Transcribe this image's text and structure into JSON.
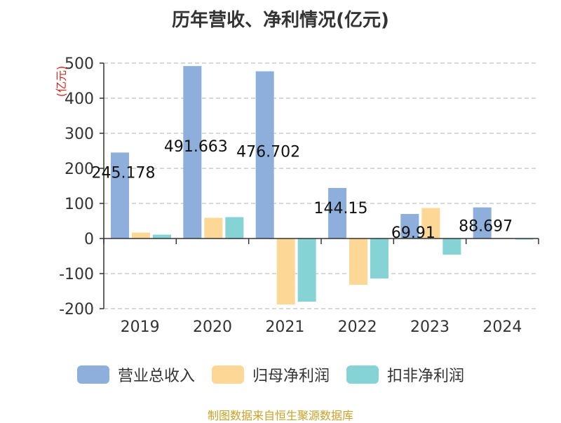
{
  "title": "历年营收、净利情况(亿元)",
  "source": "制图数据来自恒生聚源数据库",
  "colors": {
    "revenue": "#8eaedb",
    "net_profit": "#fdd795",
    "deducted_profit": "#86d3d6",
    "unit_text": "#d9261c",
    "source_text": "#c9a227"
  },
  "chart_data": {
    "type": "bar",
    "categories": [
      "2019",
      "2020",
      "2021",
      "2022",
      "2023",
      "2024"
    ],
    "ylabel": "(亿元)",
    "ylim": [
      -200,
      500
    ],
    "yticks": [
      "500",
      "400",
      "300",
      "200",
      "100",
      "0",
      "-100",
      "-200"
    ],
    "grid": true,
    "legend_position": "bottom",
    "series": [
      {
        "name": "营业总收入",
        "values": [
          245.178,
          491.663,
          476.702,
          144.15,
          69.91,
          88.697
        ],
        "labels": [
          "245.178",
          "491.663",
          "476.702",
          "144.15",
          "69.91",
          "88.697"
        ]
      },
      {
        "name": "归母净利润",
        "values": [
          17,
          59,
          -188,
          -132,
          87,
          2
        ]
      },
      {
        "name": "扣非净利润",
        "values": [
          11,
          61,
          -180,
          -114,
          -46,
          -1
        ]
      }
    ]
  }
}
